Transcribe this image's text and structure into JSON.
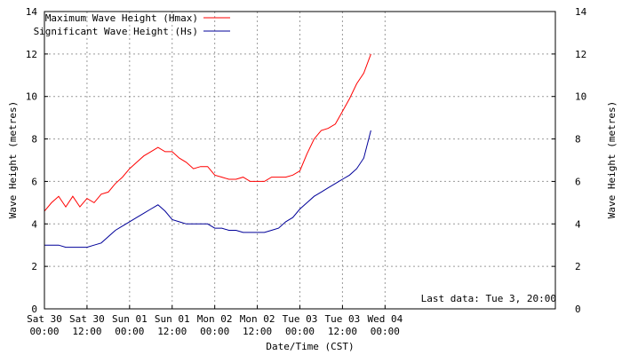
{
  "chart_data": {
    "type": "line",
    "xlabel": "Date/Time (CST)",
    "ylabel": "Wave Height (metres)",
    "ylim": [
      0,
      14
    ],
    "yticks": [
      0,
      2,
      4,
      6,
      8,
      10,
      12,
      14
    ],
    "xlim_hours": [
      0,
      144
    ],
    "grid": true,
    "legend_position": "top-left",
    "annotation": "Last data: Tue  3, 20:00",
    "xticks": [
      {
        "hour": 0,
        "line1": "Sat 30",
        "line2": "00:00"
      },
      {
        "hour": 12,
        "line1": "Sat 30",
        "line2": "12:00"
      },
      {
        "hour": 24,
        "line1": "Sun 01",
        "line2": "00:00"
      },
      {
        "hour": 36,
        "line1": "Sun 01",
        "line2": "12:00"
      },
      {
        "hour": 48,
        "line1": "Mon 02",
        "line2": "00:00"
      },
      {
        "hour": 60,
        "line1": "Mon 02",
        "line2": "12:00"
      },
      {
        "hour": 72,
        "line1": "Tue 03",
        "line2": "00:00"
      },
      {
        "hour": 84,
        "line1": "Tue 03",
        "line2": "12:00"
      },
      {
        "hour": 96,
        "line1": "Wed 04",
        "line2": "00:00"
      }
    ],
    "series": [
      {
        "name": "Maximum Wave Height (Hmax)",
        "color": "#ff0000",
        "x": [
          0,
          2,
          4,
          6,
          8,
          10,
          12,
          14,
          16,
          18,
          20,
          22,
          24,
          26,
          28,
          30,
          32,
          34,
          36,
          38,
          40,
          42,
          44,
          46,
          48,
          50,
          52,
          54,
          56,
          58,
          60,
          62,
          64,
          66,
          68,
          70,
          72,
          74,
          76,
          78,
          80,
          82,
          84,
          86,
          88,
          90,
          92
        ],
        "y": [
          4.6,
          5.0,
          5.3,
          4.8,
          5.3,
          4.8,
          5.2,
          5.0,
          5.4,
          5.5,
          5.9,
          6.2,
          6.6,
          6.9,
          7.2,
          7.4,
          7.6,
          7.4,
          7.4,
          7.1,
          6.9,
          6.6,
          6.7,
          6.7,
          6.3,
          6.2,
          6.1,
          6.1,
          6.2,
          6.0,
          6.0,
          6.0,
          6.2,
          6.2,
          6.2,
          6.3,
          6.5,
          7.3,
          8.0,
          8.4,
          8.5,
          8.7,
          9.3,
          9.9,
          10.6,
          11.1,
          12.0
        ]
      },
      {
        "name": "Significant Wave Height (Hs)",
        "color": "#000099",
        "x": [
          0,
          2,
          4,
          6,
          8,
          10,
          12,
          14,
          16,
          18,
          20,
          22,
          24,
          26,
          28,
          30,
          32,
          34,
          36,
          38,
          40,
          42,
          44,
          46,
          48,
          50,
          52,
          54,
          56,
          58,
          60,
          62,
          64,
          66,
          68,
          70,
          72,
          74,
          76,
          78,
          80,
          82,
          84,
          86,
          88,
          90,
          92
        ],
        "y": [
          3.0,
          3.0,
          3.0,
          2.9,
          2.9,
          2.9,
          2.9,
          3.0,
          3.1,
          3.4,
          3.7,
          3.9,
          4.1,
          4.3,
          4.5,
          4.7,
          4.9,
          4.6,
          4.2,
          4.1,
          4.0,
          4.0,
          4.0,
          4.0,
          3.8,
          3.8,
          3.7,
          3.7,
          3.6,
          3.6,
          3.6,
          3.6,
          3.7,
          3.8,
          4.1,
          4.3,
          4.7,
          5.0,
          5.3,
          5.5,
          5.7,
          5.9,
          6.1,
          6.3,
          6.6,
          7.1,
          8.4
        ]
      }
    ]
  }
}
